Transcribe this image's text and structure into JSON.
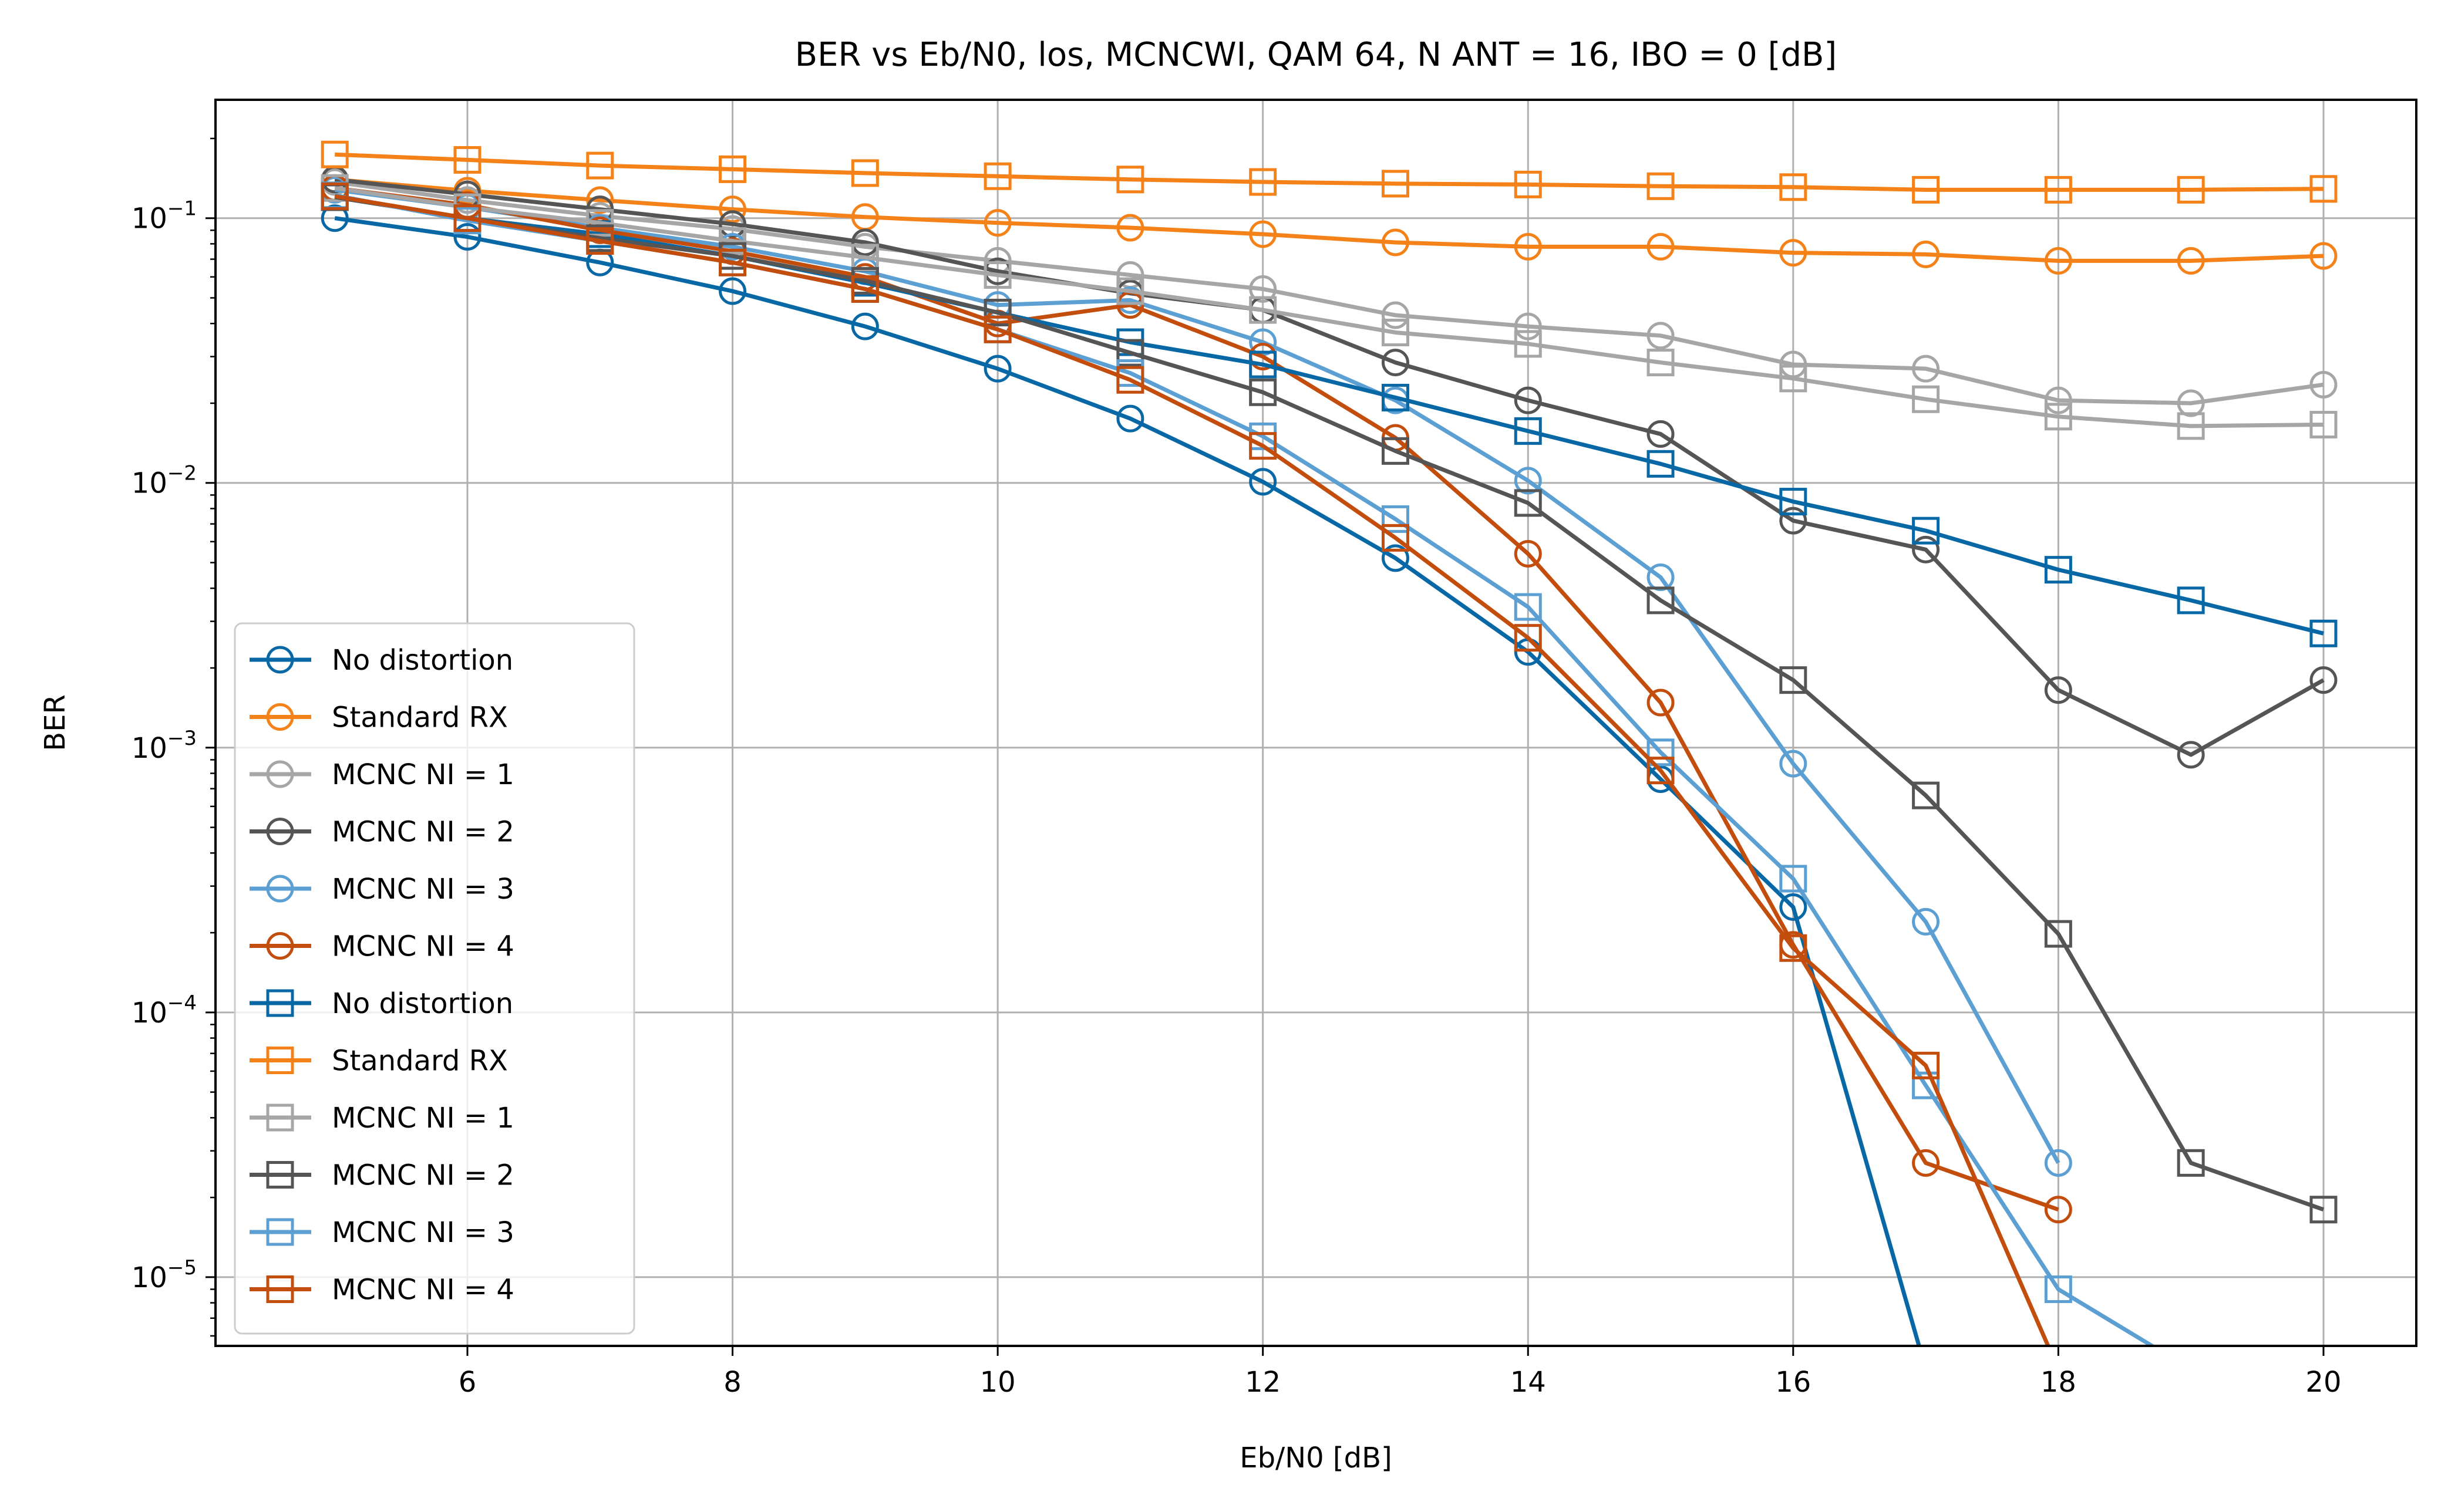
{
  "chart_data": {
    "type": "line",
    "title": "BER vs Eb/N0, los, MCNCWI, QAM 64, N ANT = 16, IBO = 0 [dB]",
    "xlabel": "Eb/N0 [dB]",
    "ylabel": "BER",
    "x": [
      5,
      6,
      7,
      8,
      9,
      10,
      11,
      12,
      13,
      14,
      15,
      16,
      17,
      18,
      19,
      20
    ],
    "xlim": [
      4.1,
      20.7
    ],
    "xticks": [
      6,
      8,
      10,
      12,
      14,
      16,
      18,
      20
    ],
    "yscale": "log",
    "ylim": [
      5.5e-06,
      0.28
    ],
    "yticks": [
      1e-05,
      0.0001,
      0.001,
      0.01,
      0.1
    ],
    "yticklabels": [
      {
        "base": "10",
        "exp": "−5"
      },
      {
        "base": "10",
        "exp": "−4"
      },
      {
        "base": "10",
        "exp": "−3"
      },
      {
        "base": "10",
        "exp": "−2"
      },
      {
        "base": "10",
        "exp": "−1"
      }
    ],
    "grid": true,
    "legend_position": "lower-left",
    "series": [
      {
        "name": "No distortion",
        "marker": "circle",
        "color": "#0868a6",
        "values": [
          0.1,
          0.085,
          0.068,
          0.053,
          0.039,
          0.027,
          0.0175,
          0.0101,
          0.0052,
          0.0023,
          0.00076,
          0.00025,
          0,
          null,
          null,
          null
        ]
      },
      {
        "name": "Standard RX",
        "marker": "circle",
        "color": "#f58219",
        "values": [
          0.14,
          0.127,
          0.117,
          0.108,
          0.101,
          0.096,
          0.092,
          0.087,
          0.081,
          0.078,
          0.078,
          0.074,
          0.073,
          0.069,
          0.069,
          0.072
        ]
      },
      {
        "name": "MCNC NI = 1",
        "marker": "circle",
        "color": "#a6a6a6",
        "values": [
          0.137,
          0.117,
          0.102,
          0.091,
          0.078,
          0.069,
          0.061,
          0.054,
          0.043,
          0.039,
          0.036,
          0.028,
          0.027,
          0.0205,
          0.02,
          0.0235
        ]
      },
      {
        "name": "MCNC NI = 2",
        "marker": "circle",
        "color": "#555555",
        "values": [
          0.14,
          0.123,
          0.108,
          0.095,
          0.081,
          0.063,
          0.052,
          0.045,
          0.0285,
          0.0205,
          0.0153,
          0.0072,
          0.0056,
          0.00165,
          0.00094,
          0.0018
        ]
      },
      {
        "name": "MCNC NI = 3",
        "marker": "circle",
        "color": "#5b9fd3",
        "values": [
          0.128,
          0.11,
          0.092,
          0.078,
          0.063,
          0.047,
          0.049,
          0.034,
          0.0205,
          0.0102,
          0.0044,
          0.00087,
          0.00022,
          2.7e-05,
          null,
          null
        ]
      },
      {
        "name": "MCNC NI = 4",
        "marker": "circle",
        "color": "#c24d0c",
        "values": [
          0.13,
          0.112,
          0.09,
          0.075,
          0.06,
          0.04,
          0.047,
          0.03,
          0.0148,
          0.0054,
          0.00148,
          0.00018,
          2.7e-05,
          1.8e-05,
          null,
          null
        ]
      },
      {
        "name": "No distortion",
        "marker": "square",
        "color": "#0868a6",
        "values": [
          0.12,
          0.1,
          0.087,
          0.072,
          0.057,
          0.044,
          0.034,
          0.028,
          0.021,
          0.0157,
          0.0118,
          0.0085,
          0.0066,
          0.0047,
          0.0036,
          0.0027
        ]
      },
      {
        "name": "Standard RX",
        "marker": "square",
        "color": "#f58219",
        "values": [
          0.174,
          0.166,
          0.158,
          0.153,
          0.148,
          0.144,
          0.14,
          0.137,
          0.135,
          0.134,
          0.132,
          0.131,
          0.128,
          0.128,
          0.128,
          0.129
        ]
      },
      {
        "name": "MCNC NI = 1",
        "marker": "square",
        "color": "#a6a6a6",
        "values": [
          0.13,
          0.11,
          0.096,
          0.082,
          0.071,
          0.061,
          0.053,
          0.045,
          0.037,
          0.0335,
          0.0285,
          0.0248,
          0.0207,
          0.0178,
          0.0164,
          0.0166
        ]
      },
      {
        "name": "MCNC NI = 2",
        "marker": "square",
        "color": "#555555",
        "values": [
          0.12,
          0.1,
          0.084,
          0.072,
          0.058,
          0.044,
          0.031,
          0.022,
          0.0132,
          0.0084,
          0.0036,
          0.0018,
          0.00066,
          0.000198,
          2.7e-05,
          1.8e-05
        ]
      },
      {
        "name": "MCNC NI = 3",
        "marker": "square",
        "color": "#5b9fd3",
        "values": [
          0.122,
          0.098,
          0.082,
          0.068,
          0.054,
          0.038,
          0.026,
          0.015,
          0.0073,
          0.0034,
          0.00096,
          0.00032,
          5.3e-05,
          9e-06,
          0,
          null
        ]
      },
      {
        "name": "MCNC NI = 4",
        "marker": "square",
        "color": "#c24d0c",
        "values": [
          0.121,
          0.1,
          0.082,
          0.068,
          0.054,
          0.038,
          0.0245,
          0.0138,
          0.0062,
          0.0026,
          0.00082,
          0.000175,
          6.3e-05,
          0,
          null,
          null
        ]
      }
    ]
  }
}
